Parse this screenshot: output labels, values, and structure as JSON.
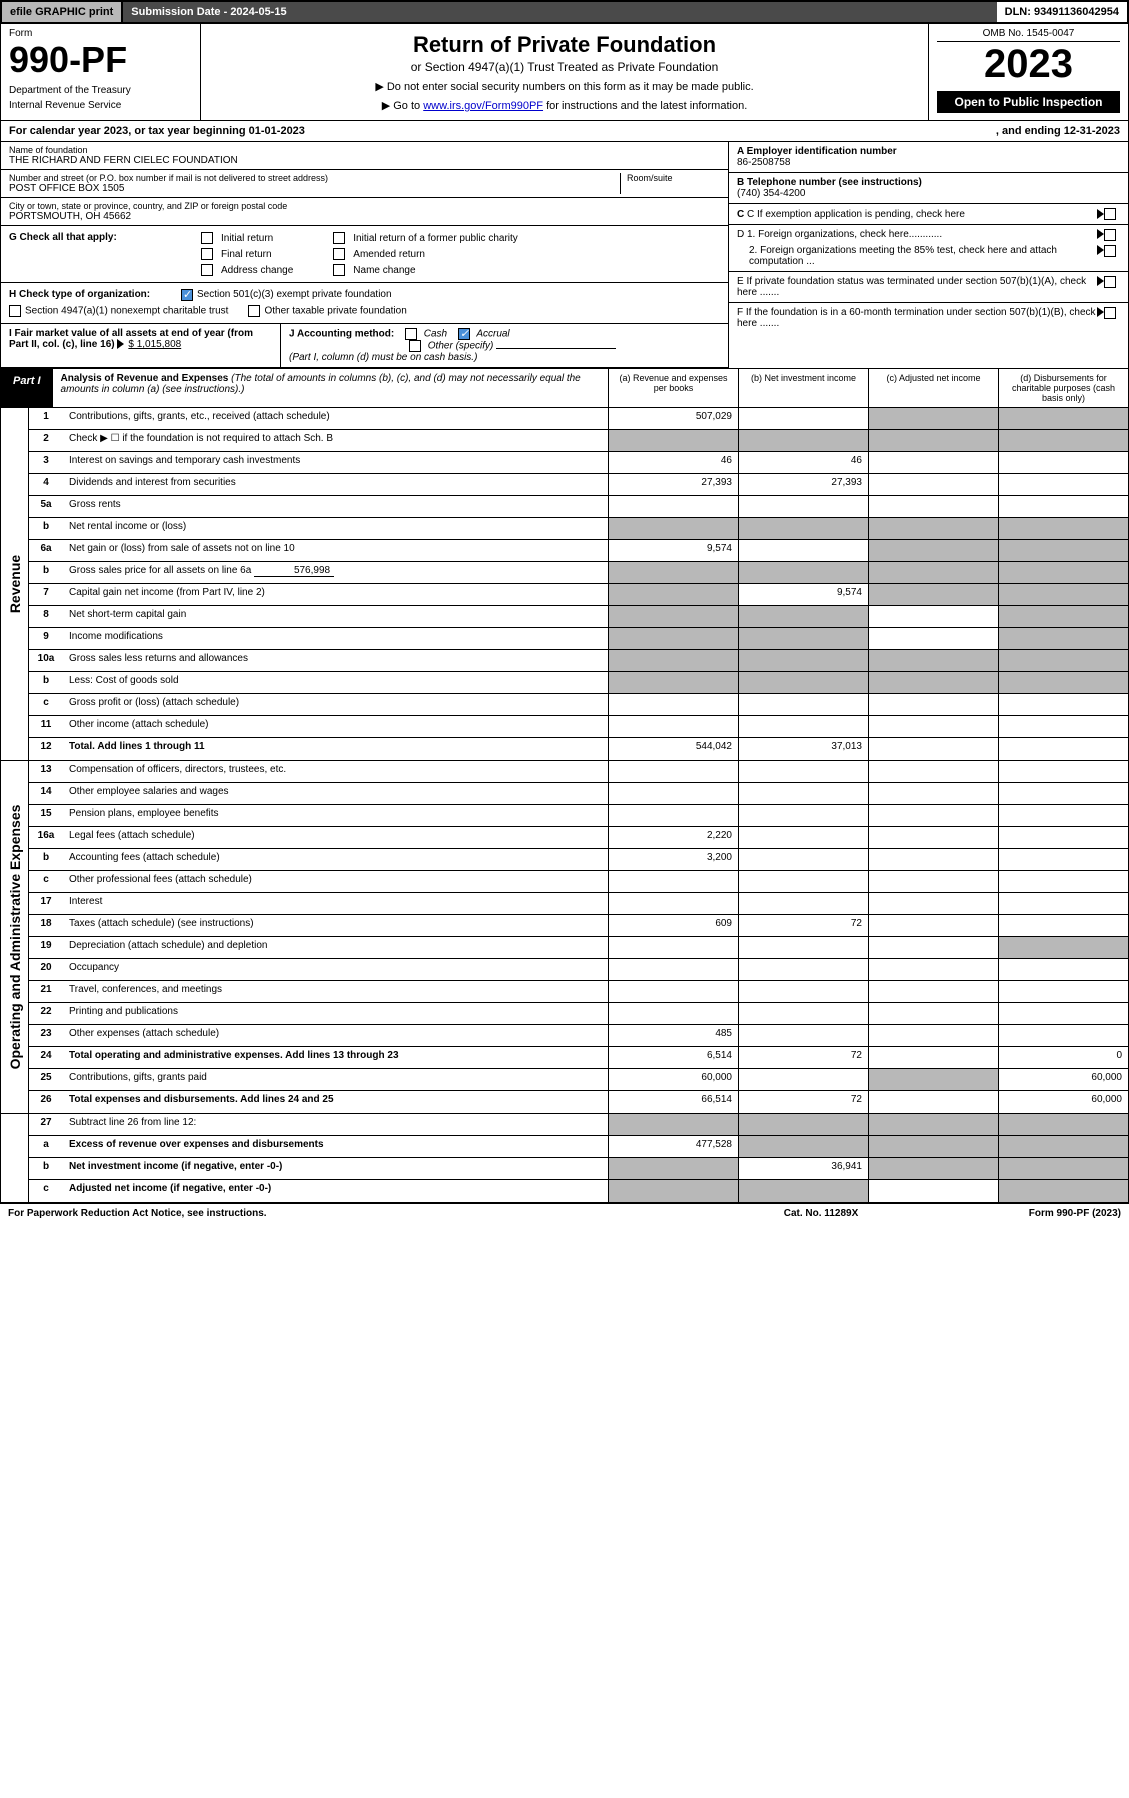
{
  "top": {
    "efile": "efile GRAPHIC print",
    "submission": "Submission Date - 2024-05-15",
    "dln": "DLN: 93491136042954"
  },
  "header": {
    "form": "Form",
    "form_number": "990-PF",
    "dept": "Department of the Treasury",
    "irs": "Internal Revenue Service",
    "title": "Return of Private Foundation",
    "subtitle": "or Section 4947(a)(1) Trust Treated as Private Foundation",
    "note1": "▶ Do not enter social security numbers on this form as it may be made public.",
    "note2_pre": "▶ Go to ",
    "note2_link": "www.irs.gov/Form990PF",
    "note2_post": " for instructions and the latest information.",
    "omb": "OMB No. 1545-0047",
    "year": "2023",
    "open": "Open to Public Inspection"
  },
  "cal": {
    "text": "For calendar year 2023, or tax year beginning 01-01-2023",
    "end": ", and ending 12-31-2023"
  },
  "foundation": {
    "name_label": "Name of foundation",
    "name": "THE RICHARD AND FERN CIELEC FOUNDATION",
    "addr_label": "Number and street (or P.O. box number if mail is not delivered to street address)",
    "addr": "POST OFFICE BOX 1505",
    "room_label": "Room/suite",
    "city_label": "City or town, state or province, country, and ZIP or foreign postal code",
    "city": "PORTSMOUTH, OH  45662"
  },
  "right": {
    "a_label": "A Employer identification number",
    "a_value": "86-2508758",
    "b_label": "B Telephone number (see instructions)",
    "b_value": "(740) 354-4200",
    "c_label": "C If exemption application is pending, check here",
    "d1_label": "D 1. Foreign organizations, check here............",
    "d2_label": "2. Foreign organizations meeting the 85% test, check here and attach computation ...",
    "e_label": "E  If private foundation status was terminated under section 507(b)(1)(A), check here .......",
    "f_label": "F  If the foundation is in a 60-month termination under section 507(b)(1)(B), check here .......",
    "arrow": "▶"
  },
  "g": {
    "label": "G Check all that apply:",
    "initial": "Initial return",
    "final": "Final return",
    "address": "Address change",
    "initial_former": "Initial return of a former public charity",
    "amended": "Amended return",
    "name_change": "Name change"
  },
  "h": {
    "label": "H Check type of organization:",
    "s501": "Section 501(c)(3) exempt private foundation",
    "s4947": "Section 4947(a)(1) nonexempt charitable trust",
    "other": "Other taxable private foundation"
  },
  "i": {
    "label": "I Fair market value of all assets at end of year (from Part II, col. (c), line 16)",
    "value": "$  1,015,808"
  },
  "j": {
    "label": "J Accounting method:",
    "cash": "Cash",
    "accrual": "Accrual",
    "other": "Other (specify)",
    "note": "(Part I, column (d) must be on cash basis.)"
  },
  "part1": {
    "label": "Part I",
    "title": "Analysis of Revenue and Expenses",
    "desc": "(The total of amounts in columns (b), (c), and (d) may not necessarily equal the amounts in column (a) (see instructions).)",
    "col_a": "(a) Revenue and expenses per books",
    "col_b": "(b) Net investment income",
    "col_c": "(c) Adjusted net income",
    "col_d": "(d) Disbursements for charitable purposes (cash basis only)"
  },
  "revenue_label": "Revenue",
  "expense_label": "Operating and Administrative Expenses",
  "rows": {
    "r1": {
      "ln": "1",
      "desc": "Contributions, gifts, grants, etc., received (attach schedule)",
      "a": "507,029"
    },
    "r2": {
      "ln": "2",
      "desc": "Check ▶ ☐ if the foundation is not required to attach Sch. B"
    },
    "r3": {
      "ln": "3",
      "desc": "Interest on savings and temporary cash investments",
      "a": "46",
      "b": "46"
    },
    "r4": {
      "ln": "4",
      "desc": "Dividends and interest from securities",
      "a": "27,393",
      "b": "27,393"
    },
    "r5a": {
      "ln": "5a",
      "desc": "Gross rents"
    },
    "r5b": {
      "ln": "b",
      "desc": "Net rental income or (loss)"
    },
    "r6a": {
      "ln": "6a",
      "desc": "Net gain or (loss) from sale of assets not on line 10",
      "a": "9,574"
    },
    "r6b": {
      "ln": "b",
      "desc": "Gross sales price for all assets on line 6a",
      "inline": "576,998"
    },
    "r7": {
      "ln": "7",
      "desc": "Capital gain net income (from Part IV, line 2)",
      "b": "9,574"
    },
    "r8": {
      "ln": "8",
      "desc": "Net short-term capital gain"
    },
    "r9": {
      "ln": "9",
      "desc": "Income modifications"
    },
    "r10a": {
      "ln": "10a",
      "desc": "Gross sales less returns and allowances"
    },
    "r10b": {
      "ln": "b",
      "desc": "Less: Cost of goods sold"
    },
    "r10c": {
      "ln": "c",
      "desc": "Gross profit or (loss) (attach schedule)"
    },
    "r11": {
      "ln": "11",
      "desc": "Other income (attach schedule)"
    },
    "r12": {
      "ln": "12",
      "desc": "Total. Add lines 1 through 11",
      "a": "544,042",
      "b": "37,013"
    },
    "r13": {
      "ln": "13",
      "desc": "Compensation of officers, directors, trustees, etc."
    },
    "r14": {
      "ln": "14",
      "desc": "Other employee salaries and wages"
    },
    "r15": {
      "ln": "15",
      "desc": "Pension plans, employee benefits"
    },
    "r16a": {
      "ln": "16a",
      "desc": "Legal fees (attach schedule)",
      "a": "2,220"
    },
    "r16b": {
      "ln": "b",
      "desc": "Accounting fees (attach schedule)",
      "a": "3,200"
    },
    "r16c": {
      "ln": "c",
      "desc": "Other professional fees (attach schedule)"
    },
    "r17": {
      "ln": "17",
      "desc": "Interest"
    },
    "r18": {
      "ln": "18",
      "desc": "Taxes (attach schedule) (see instructions)",
      "a": "609",
      "b": "72"
    },
    "r19": {
      "ln": "19",
      "desc": "Depreciation (attach schedule) and depletion"
    },
    "r20": {
      "ln": "20",
      "desc": "Occupancy"
    },
    "r21": {
      "ln": "21",
      "desc": "Travel, conferences, and meetings"
    },
    "r22": {
      "ln": "22",
      "desc": "Printing and publications"
    },
    "r23": {
      "ln": "23",
      "desc": "Other expenses (attach schedule)",
      "a": "485"
    },
    "r24": {
      "ln": "24",
      "desc": "Total operating and administrative expenses. Add lines 13 through 23",
      "a": "6,514",
      "b": "72",
      "d": "0"
    },
    "r25": {
      "ln": "25",
      "desc": "Contributions, gifts, grants paid",
      "a": "60,000",
      "d": "60,000"
    },
    "r26": {
      "ln": "26",
      "desc": "Total expenses and disbursements. Add lines 24 and 25",
      "a": "66,514",
      "b": "72",
      "d": "60,000"
    },
    "r27": {
      "ln": "27",
      "desc": "Subtract line 26 from line 12:"
    },
    "r27a": {
      "ln": "a",
      "desc": "Excess of revenue over expenses and disbursements",
      "a": "477,528"
    },
    "r27b": {
      "ln": "b",
      "desc": "Net investment income (if negative, enter -0-)",
      "b": "36,941"
    },
    "r27c": {
      "ln": "c",
      "desc": "Adjusted net income (if negative, enter -0-)"
    }
  },
  "footer": {
    "left": "For Paperwork Reduction Act Notice, see instructions.",
    "mid": "Cat. No. 11289X",
    "right": "Form 990-PF (2023)"
  },
  "colors": {
    "grey_bg": "#b8b8b8",
    "dark_bg": "#4a4a4a",
    "black": "#000000",
    "link": "#0000cc",
    "check": "#4a90d9"
  }
}
